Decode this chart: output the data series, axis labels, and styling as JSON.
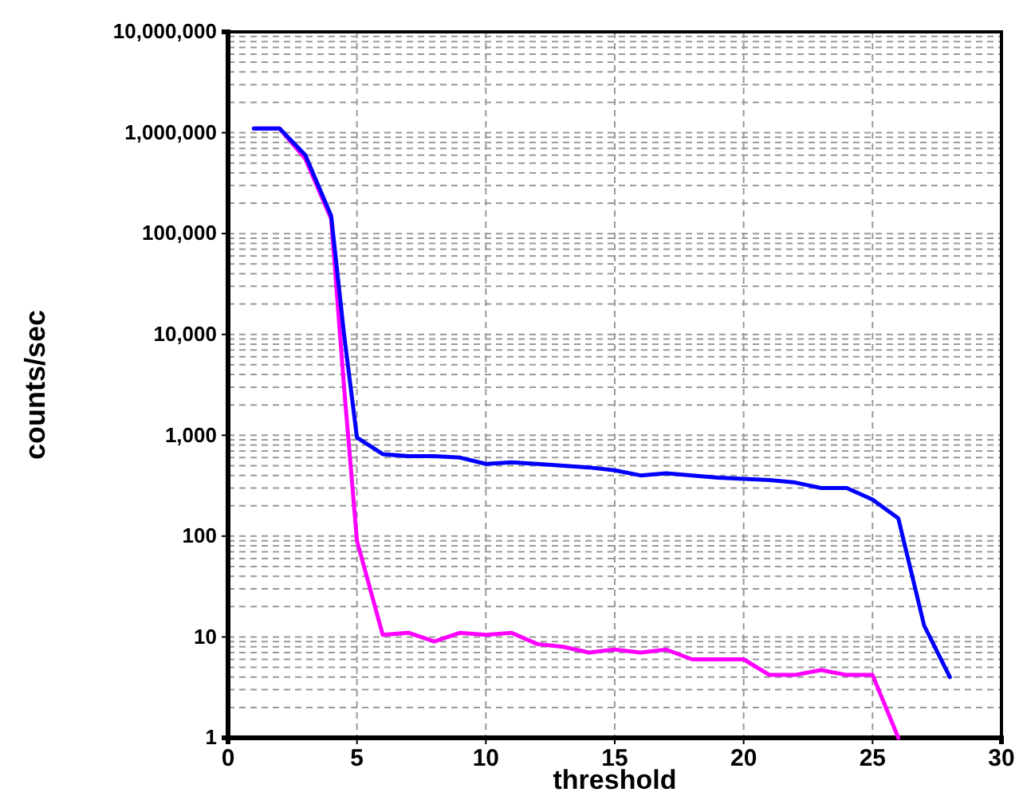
{
  "chart_data": {
    "type": "line",
    "xlabel": "threshold",
    "ylabel": "counts/sec",
    "log": true,
    "grid": true,
    "x": [
      1,
      2,
      3,
      4,
      4.5,
      5,
      6,
      7,
      8,
      9,
      10,
      11,
      12,
      13,
      14,
      15,
      16,
      17,
      18,
      19,
      20,
      21,
      22,
      23,
      24,
      25,
      26,
      27,
      28
    ],
    "xlim": [
      0,
      30
    ],
    "xticks": [
      0,
      5,
      10,
      15,
      20,
      25,
      30
    ],
    "ylim": [
      1,
      10000000
    ],
    "yticks": [
      {
        "value": 1,
        "label": "1"
      },
      {
        "value": 10,
        "label": "10"
      },
      {
        "value": 100,
        "label": "100"
      },
      {
        "value": 1000,
        "label": "1,000"
      },
      {
        "value": 10000,
        "label": "10,000"
      },
      {
        "value": 100000,
        "label": "100,000"
      },
      {
        "value": 1000000,
        "label": "1,000,000"
      },
      {
        "value": 10000000,
        "label": "10,000,000"
      }
    ],
    "series": [
      {
        "color": "#ff00ff",
        "values": [
          1100000,
          1100000,
          550000,
          140000,
          3000,
          90,
          10.5,
          11,
          9,
          11,
          10.5,
          11,
          8.5,
          8,
          7,
          7.5,
          7,
          7.5,
          6,
          6,
          6,
          4.2,
          4.2,
          4.7,
          4.2,
          4.2,
          1,
          null,
          null
        ]
      },
      {
        "color": "#0000ff",
        "values": [
          1100000,
          1100000,
          600000,
          150000,
          10000,
          950,
          650,
          620,
          620,
          600,
          520,
          540,
          520,
          500,
          480,
          450,
          400,
          420,
          400,
          380,
          370,
          360,
          340,
          300,
          300,
          230,
          150,
          13,
          4
        ]
      }
    ]
  }
}
